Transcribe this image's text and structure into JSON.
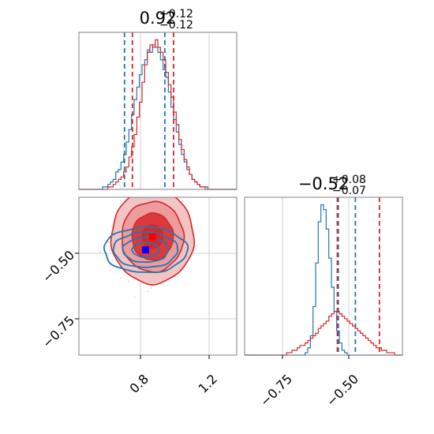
{
  "chart_data": [
    {
      "type": "histogram",
      "panel": "top-left",
      "title": {
        "value": "0.92",
        "plus": "+0.12",
        "minus": "−0.12"
      },
      "xlim": [
        0.5,
        1.4
      ],
      "bins_start": 0.5,
      "bin_width": 0.015,
      "series": [
        {
          "color": "#1f77b4",
          "counts": [
            0,
            0,
            0,
            0,
            0,
            0,
            0,
            0,
            0,
            1,
            1,
            2,
            3,
            4,
            7,
            8,
            11,
            14,
            19,
            24,
            30,
            36,
            41,
            46,
            50,
            52,
            56,
            55,
            58,
            57,
            55,
            52,
            48,
            45,
            39,
            33,
            28,
            23,
            18,
            14,
            11,
            8,
            6,
            4,
            3,
            2,
            1,
            1,
            1,
            0,
            0,
            0,
            0,
            0,
            0,
            0,
            0,
            0,
            0,
            0
          ],
          "quantile_lines": [
            0.76,
            0.99
          ]
        },
        {
          "color": "#d62728",
          "counts": [
            0,
            0,
            0,
            0,
            0,
            0,
            0,
            0,
            0,
            0,
            0,
            1,
            1,
            2,
            3,
            4,
            5,
            7,
            9,
            13,
            17,
            22,
            29,
            35,
            43,
            50,
            55,
            58,
            57,
            60,
            57,
            55,
            52,
            47,
            42,
            37,
            31,
            26,
            20,
            16,
            12,
            9,
            6,
            4,
            3,
            2,
            1,
            1,
            0,
            0,
            0,
            0,
            0,
            0,
            0,
            0,
            0,
            0,
            0,
            0
          ],
          "quantile_lines": [
            0.805,
            1.04
          ]
        }
      ]
    },
    {
      "type": "histogram",
      "panel": "bottom-right",
      "title": {
        "value": "−0.52",
        "plus": "+0.08",
        "minus": "−0.07"
      },
      "xlim": [
        -0.88,
        -0.4
      ],
      "bins_start": -0.88,
      "bin_width": 0.008,
      "series": [
        {
          "color": "#1f77b4",
          "counts": [
            0,
            0,
            0,
            0,
            0,
            0,
            0,
            0,
            0,
            0,
            0,
            0,
            0,
            0,
            0,
            0,
            0,
            0,
            0,
            0,
            0,
            0,
            0,
            1,
            3,
            8,
            20,
            38,
            55,
            62,
            60,
            52,
            40,
            28,
            18,
            10,
            5,
            2,
            1,
            0,
            0,
            0,
            0,
            0,
            0,
            0,
            0,
            0,
            0,
            0,
            0,
            0,
            0,
            0,
            0,
            0,
            0,
            0,
            0,
            0
          ],
          "quantile_lines": [
            -0.595,
            -0.543
          ]
        },
        {
          "color": "#d62728",
          "counts": [
            0,
            0,
            0,
            0,
            0,
            0,
            0,
            0,
            0,
            0,
            0,
            0,
            0,
            0,
            0,
            0,
            1,
            1,
            2,
            2,
            3,
            4,
            4,
            5,
            6,
            7,
            8,
            9,
            11,
            12,
            13,
            14,
            16,
            17,
            18,
            18,
            17,
            16,
            15,
            14,
            13,
            12,
            11,
            10,
            9,
            8,
            7,
            6,
            5,
            4,
            3,
            3,
            2,
            2,
            1,
            1,
            1,
            0,
            0,
            0
          ],
          "quantile_lines": [
            -0.598,
            -0.47
          ]
        }
      ]
    },
    {
      "type": "contour",
      "panel": "bottom-left",
      "xlim": [
        0.5,
        1.4
      ],
      "ylim": [
        -0.88,
        -0.4
      ],
      "x_ticks": [
        "0.8",
        "1.2"
      ],
      "x_tick_values": [
        0.8,
        1.2
      ],
      "y_ticks": [
        "−0.50",
        "−0.75"
      ],
      "y_tick_values": [
        -0.5,
        -0.75
      ],
      "series": [
        {
          "color": "#d62728",
          "center": [
            0.92,
            -0.52
          ],
          "sigma": [
            0.12,
            0.075
          ],
          "marker": "square",
          "marker_color": "#ff0000"
        },
        {
          "color": "#1f77b4",
          "center": [
            0.88,
            -0.56
          ],
          "sigma": [
            0.12,
            0.03
          ],
          "marker": "square",
          "marker_color": "#0000ff"
        }
      ]
    }
  ],
  "bottom_right_x_ticks": [
    "−0.75",
    "−0.50"
  ],
  "bottom_right_x_tick_values": [
    -0.75,
    -0.5
  ]
}
